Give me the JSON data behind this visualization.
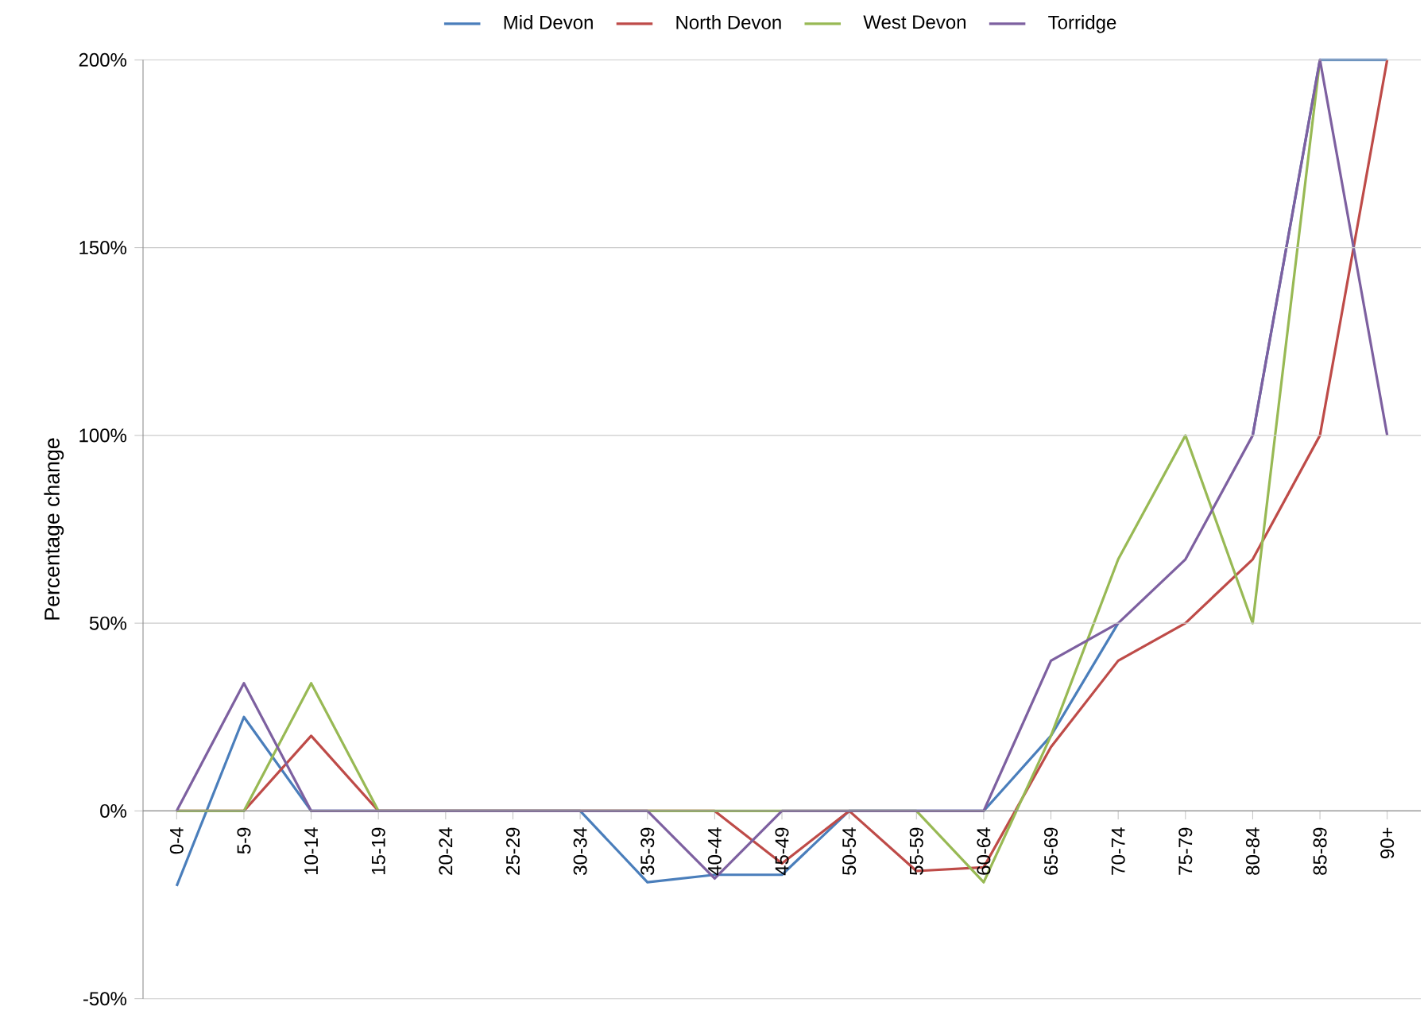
{
  "chart_data": {
    "type": "line",
    "ylabel": "Percentage change",
    "categories": [
      "0-4",
      "5-9",
      "10-14",
      "15-19",
      "20-24",
      "25-29",
      "30-34",
      "35-39",
      "40-44",
      "45-49",
      "50-54",
      "55-59",
      "60-64",
      "65-69",
      "70-74",
      "75-79",
      "80-84",
      "85-89",
      "90+"
    ],
    "series": [
      {
        "name": "Mid Devon",
        "color": "#4a7ebb",
        "values": [
          -20,
          25,
          0,
          0,
          0,
          0,
          0,
          -19,
          -17,
          -17,
          0,
          0,
          0,
          20,
          50,
          null,
          100,
          200,
          200
        ]
      },
      {
        "name": "North Devon",
        "color": "#be4b48",
        "values": [
          0,
          0,
          20,
          0,
          0,
          0,
          0,
          0,
          0,
          -14,
          0,
          -16,
          -15,
          17,
          40,
          50,
          67,
          100,
          200
        ]
      },
      {
        "name": "West Devon",
        "color": "#98b954",
        "values": [
          0,
          0,
          34,
          0,
          0,
          0,
          0,
          0,
          0,
          0,
          0,
          0,
          -19,
          20,
          67,
          100,
          50,
          200,
          null
        ]
      },
      {
        "name": "Torridge",
        "color": "#7d60a0",
        "values": [
          0,
          34,
          0,
          0,
          0,
          0,
          0,
          0,
          -18,
          0,
          0,
          0,
          0,
          40,
          50,
          67,
          100,
          200,
          100
        ]
      }
    ],
    "ylim": [
      -50,
      200
    ],
    "yticks": [
      {
        "value": -50,
        "label": "-50%"
      },
      {
        "value": 0,
        "label": "0%"
      },
      {
        "value": 50,
        "label": "50%"
      },
      {
        "value": 100,
        "label": "100%"
      },
      {
        "value": 150,
        "label": "150%"
      },
      {
        "value": 200,
        "label": "200%"
      }
    ],
    "grid": "y",
    "legend": "top",
    "marker": "none",
    "line_style": "solid"
  }
}
